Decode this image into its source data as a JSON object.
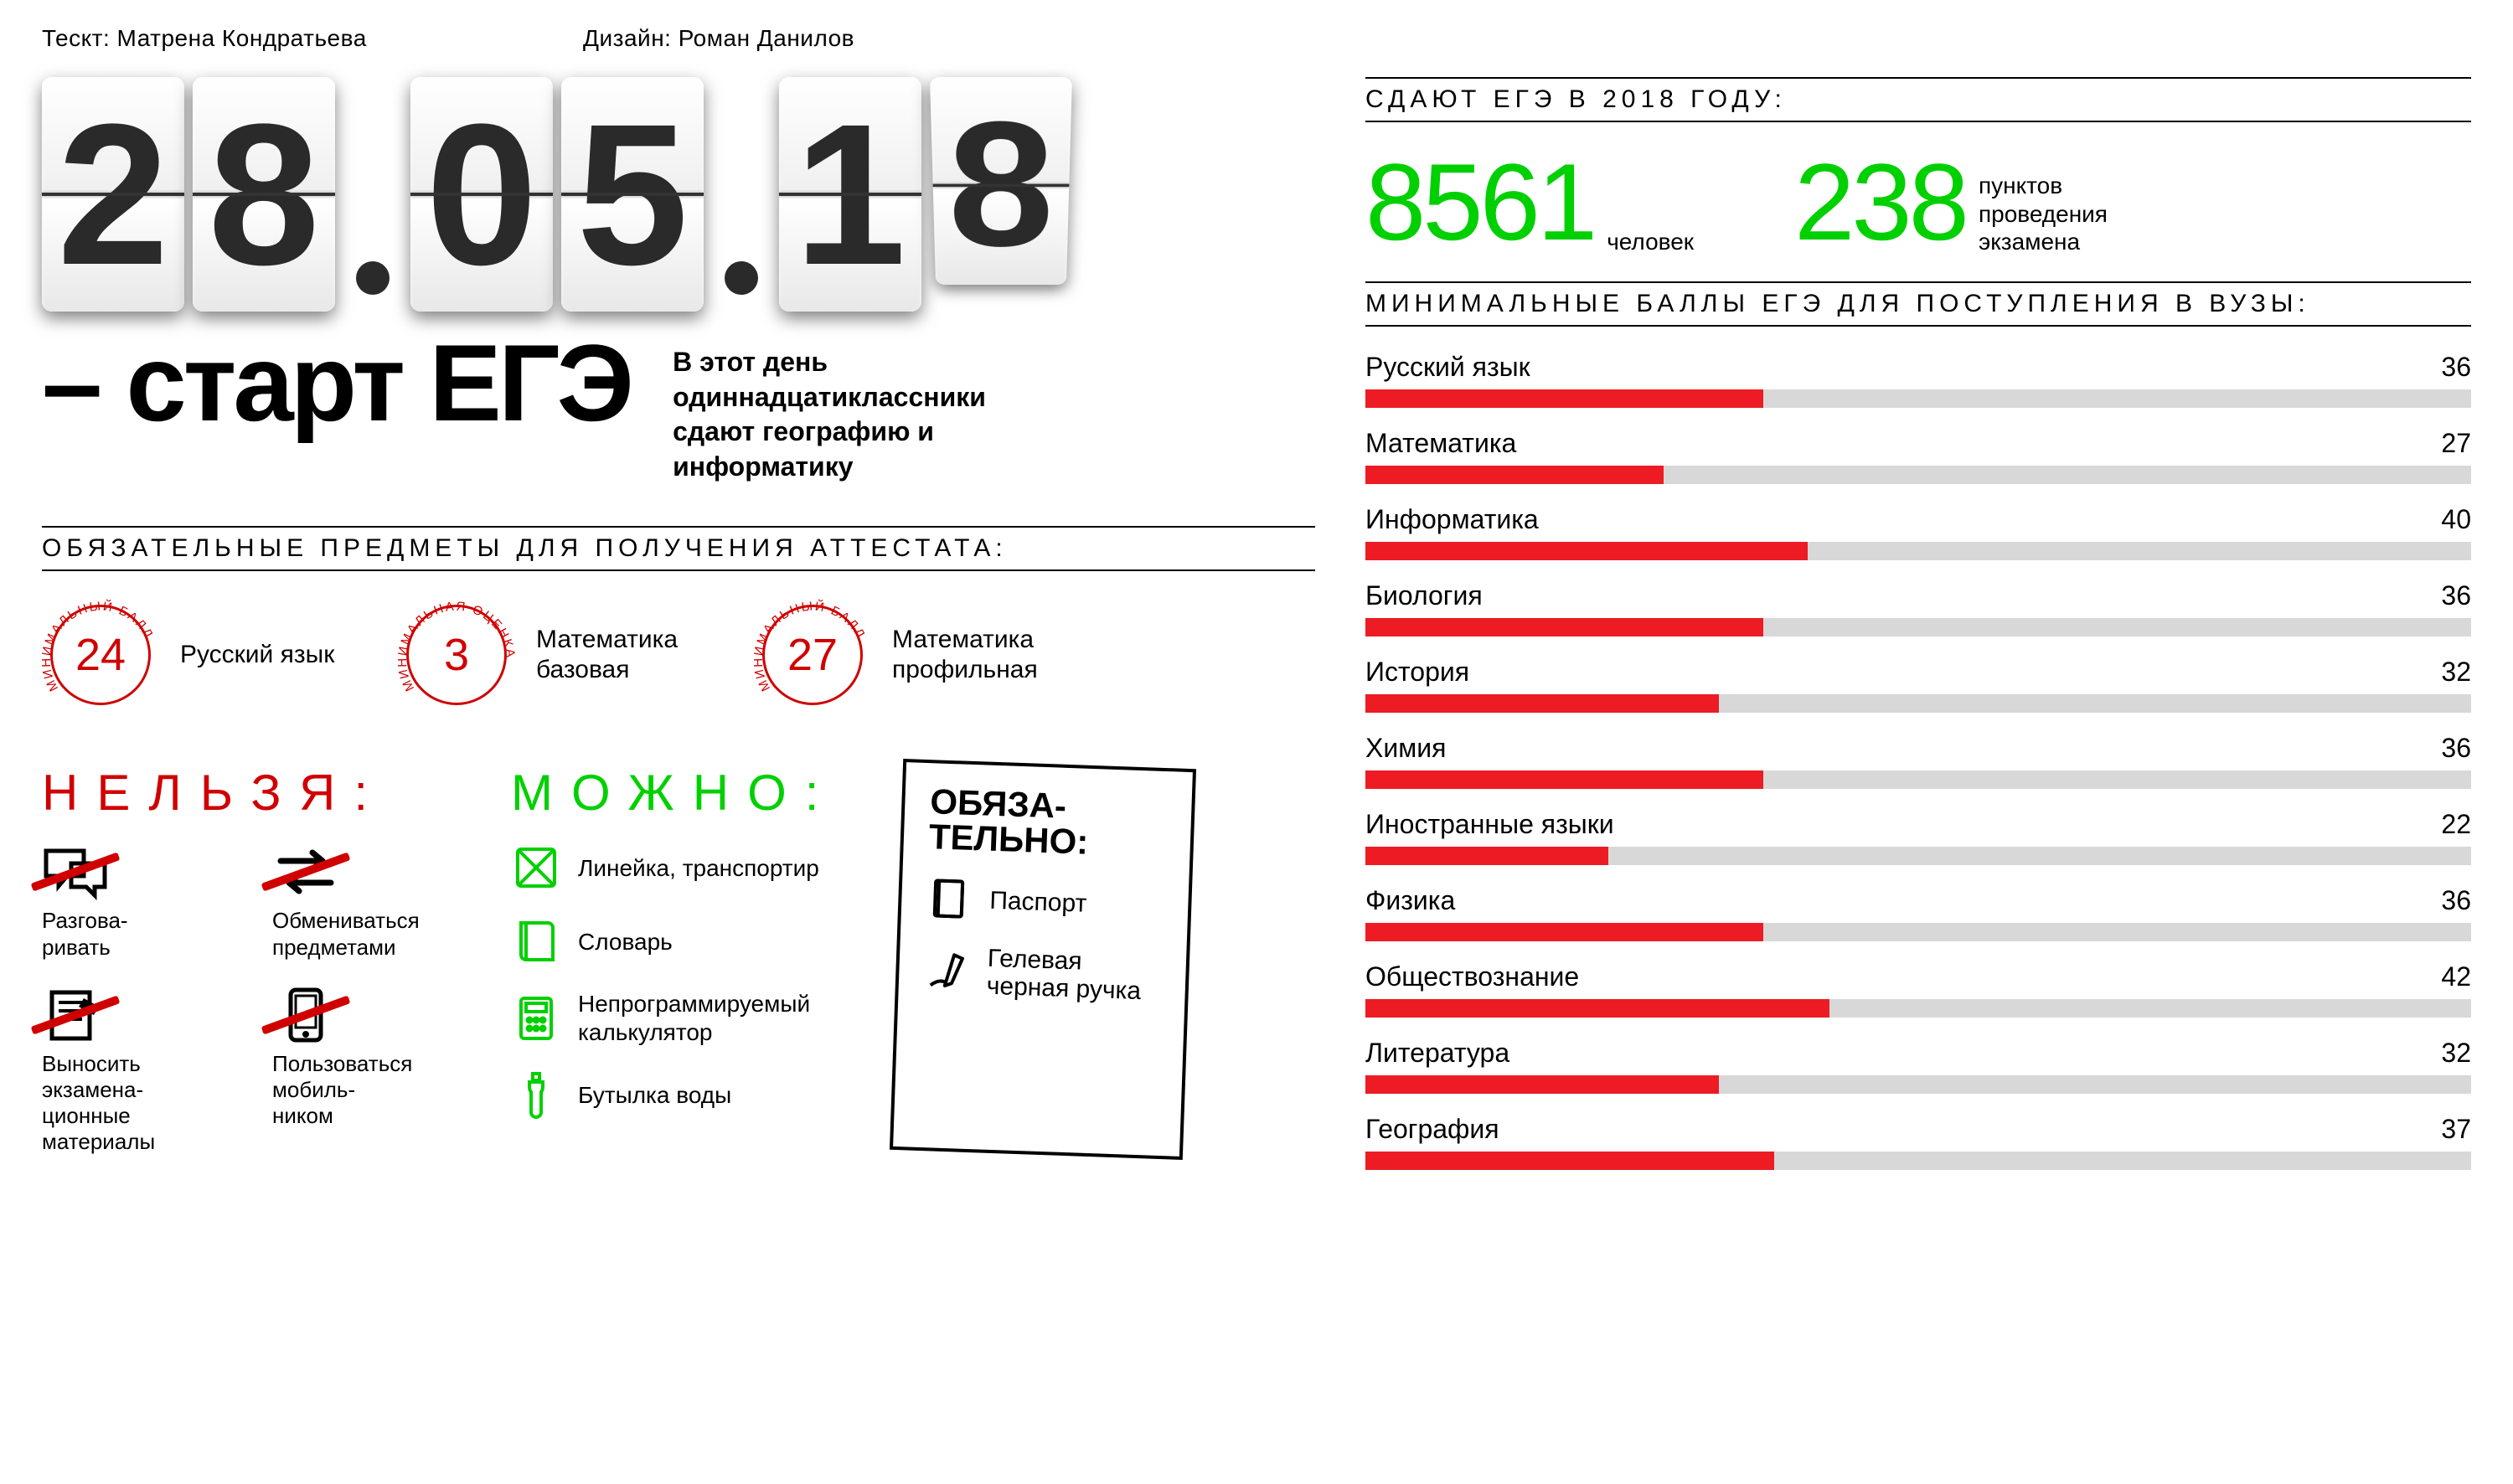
{
  "credits": {
    "text_label": "Тескт: Матрена Кондратьева",
    "design_label": "Дизайн: Роман Данилов"
  },
  "flip_date": {
    "digits": [
      "2",
      "8",
      "0",
      "5",
      "1",
      "8"
    ],
    "card_fg": "#2a2a2a",
    "card_shadow": "#333333"
  },
  "headline": {
    "title": "– старт ЕГЭ",
    "subtitle": "В этот день одиннадцатиклассники сдают географию и информатику",
    "title_fontsize": 130
  },
  "mandatory": {
    "header": "ОБЯЗАТЕЛЬНЫЕ ПРЕДМЕТЫ ДЛЯ ПОЛУЧЕНИЯ АТТЕСТАТА:",
    "items": [
      {
        "arc": "МИНИМАЛЬНЫЙ БАЛЛ",
        "value": "24",
        "label": "Русский язык"
      },
      {
        "arc": "МИНИМАЛЬНАЯ ОЦЕНКА",
        "value": "3",
        "label": "Математика базовая"
      },
      {
        "arc": "МИНИМАЛЬНЫЙ БАЛЛ",
        "value": "27",
        "label": "Математика профильная"
      }
    ],
    "circle_color": "#d00000"
  },
  "forbidden": {
    "title": "НЕЛЬЗЯ:",
    "color": "#d00000",
    "items": [
      {
        "label": "Разгова-\nривать",
        "icon": "talk"
      },
      {
        "label": "Обмениваться предметами",
        "icon": "exchange"
      },
      {
        "label": "Выносить экзамена-\nционные материалы",
        "icon": "takeout"
      },
      {
        "label": "Пользоваться мобиль-\nником",
        "icon": "phone"
      }
    ]
  },
  "allowed": {
    "title": "МОЖНО:",
    "color": "#00d000",
    "items": [
      {
        "label": "Линейка, транспортир",
        "icon": "ruler"
      },
      {
        "label": "Словарь",
        "icon": "book"
      },
      {
        "label": "Непрограммируемый калькулятор",
        "icon": "calc"
      },
      {
        "label": "Бутылка воды",
        "icon": "bottle"
      }
    ]
  },
  "required_bring": {
    "title": "ОБЯЗА-\nТЕЛЬНО:",
    "items": [
      {
        "label": "Паспорт",
        "icon": "passport"
      },
      {
        "label": "Гелевая черная ручка",
        "icon": "pen"
      }
    ]
  },
  "stats": {
    "header": "СДАЮТ ЕГЭ В 2018 ГОДУ:",
    "people_value": "8561",
    "people_label": "человек",
    "points_value": "238",
    "points_label": "пунктов\nпроведения\nэкзамена",
    "value_color": "#00d000"
  },
  "min_scores": {
    "header": "МИНИМАЛЬНЫЕ БАЛЛЫ ЕГЭ ДЛЯ ПОСТУПЛЕНИЯ В ВУЗЫ:",
    "bar_max": 100,
    "bar_fill_color": "#ed1c24",
    "bar_track_color": "#d8d8d8",
    "rows": [
      {
        "label": "Русский язык",
        "value": 36
      },
      {
        "label": "Математика",
        "value": 27
      },
      {
        "label": "Информатика",
        "value": 40
      },
      {
        "label": "Биология",
        "value": 36
      },
      {
        "label": "История",
        "value": 32
      },
      {
        "label": "Химия",
        "value": 36
      },
      {
        "label": "Иностранные языки",
        "value": 22
      },
      {
        "label": "Физика",
        "value": 36
      },
      {
        "label": "Обществознание",
        "value": 42
      },
      {
        "label": "Литература",
        "value": 32
      },
      {
        "label": "География",
        "value": 37
      }
    ]
  }
}
